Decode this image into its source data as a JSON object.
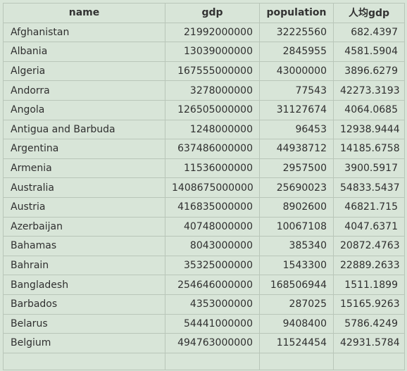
{
  "table": {
    "headers": [
      "name",
      "gdp",
      "population",
      "人均gdp"
    ],
    "rows": [
      [
        "Afghanistan",
        "21992000000",
        "32225560",
        "682.4397"
      ],
      [
        "Albania",
        "13039000000",
        "2845955",
        "4581.5904"
      ],
      [
        "Algeria",
        "167555000000",
        "43000000",
        "3896.6279"
      ],
      [
        "Andorra",
        "3278000000",
        "77543",
        "42273.3193"
      ],
      [
        "Angola",
        "126505000000",
        "31127674",
        "4064.0685"
      ],
      [
        "Antigua and Barbuda",
        "1248000000",
        "96453",
        "12938.9444"
      ],
      [
        "Argentina",
        "637486000000",
        "44938712",
        "14185.6758"
      ],
      [
        "Armenia",
        "11536000000",
        "2957500",
        "3900.5917"
      ],
      [
        "Australia",
        "1408675000000",
        "25690023",
        "54833.5437"
      ],
      [
        "Austria",
        "416835000000",
        "8902600",
        "46821.715"
      ],
      [
        "Azerbaijan",
        "40748000000",
        "10067108",
        "4047.6371"
      ],
      [
        "Bahamas",
        "8043000000",
        "385340",
        "20872.4763"
      ],
      [
        "Bahrain",
        "35325000000",
        "1543300",
        "22889.2633"
      ],
      [
        "Bangladesh",
        "254646000000",
        "168506944",
        "1511.1899"
      ],
      [
        "Barbados",
        "4353000000",
        "287025",
        "15165.9263"
      ],
      [
        "Belarus",
        "54441000000",
        "9408400",
        "5786.4249"
      ],
      [
        "Belgium",
        "494763000000",
        "11524454",
        "42931.5784"
      ]
    ]
  }
}
